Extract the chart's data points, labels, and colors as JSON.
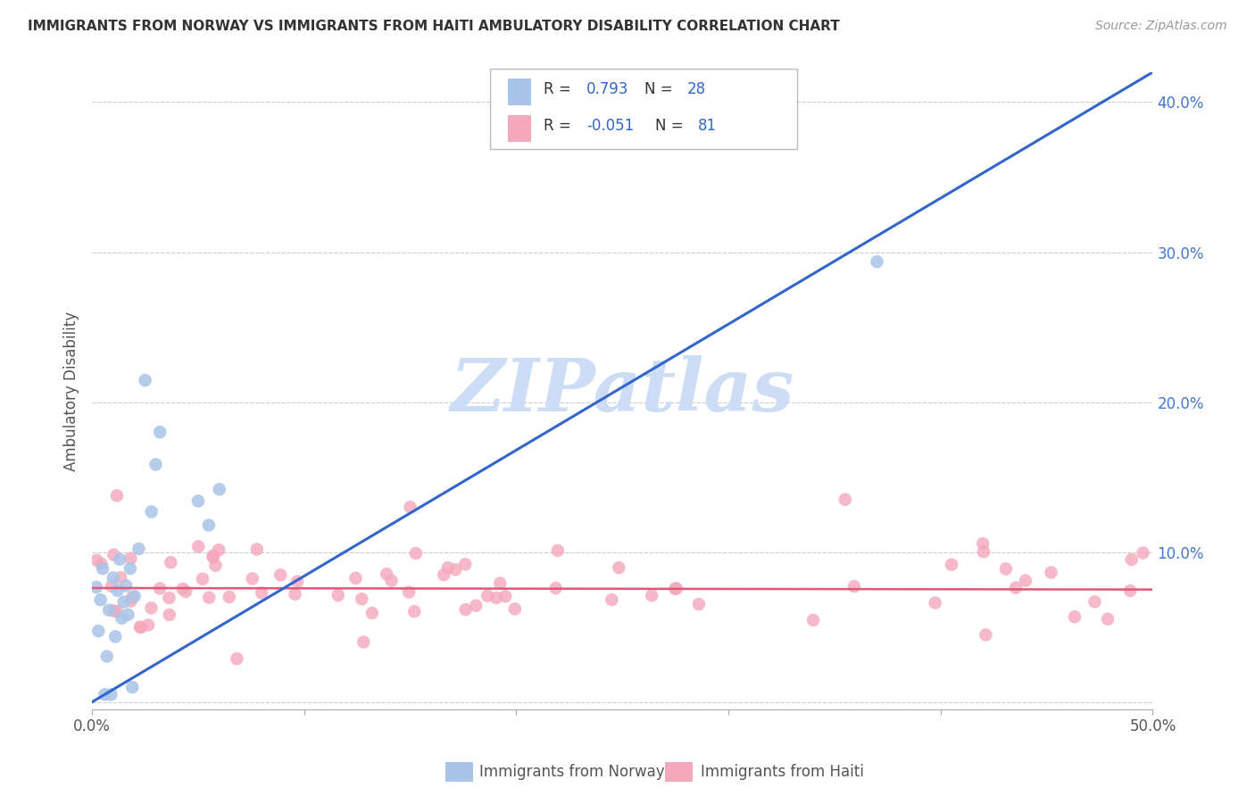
{
  "title": "IMMIGRANTS FROM NORWAY VS IMMIGRANTS FROM HAITI AMBULATORY DISABILITY CORRELATION CHART",
  "source": "Source: ZipAtlas.com",
  "ylabel": "Ambulatory Disability",
  "xlim": [
    0.0,
    0.5
  ],
  "ylim": [
    -0.005,
    0.42
  ],
  "norway_R": 0.793,
  "norway_N": 28,
  "haiti_R": -0.051,
  "haiti_N": 81,
  "norway_color": "#a8c4e8",
  "haiti_color": "#f4a8bc",
  "norway_line_color": "#3366cc",
  "haiti_line_color": "#e05878",
  "watermark_text": "ZIPatlas",
  "watermark_color": "#ccddf5",
  "ytick_vals": [
    0.0,
    0.1,
    0.2,
    0.3,
    0.4
  ],
  "ytick_labels": [
    "",
    "10.0%",
    "20.0%",
    "30.0%",
    "40.0%"
  ],
  "xtick_vals": [
    0.0,
    0.1,
    0.2,
    0.3,
    0.4,
    0.5
  ],
  "xtick_labels": [
    "0.0%",
    "",
    "",
    "",
    "",
    "50.0%"
  ],
  "background_color": "#ffffff",
  "legend_norway_text": "R =  0.793   N = 28",
  "legend_haiti_text": "R = -0.051   N = 81",
  "bottom_label_norway": "Immigrants from Norway",
  "bottom_label_haiti": "Immigrants from Haiti"
}
